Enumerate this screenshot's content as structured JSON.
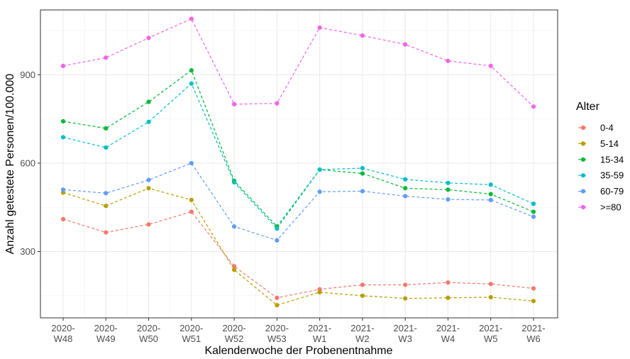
{
  "chart_data": {
    "type": "line",
    "xlabel": "Kalenderwoche der Probenentnahme",
    "ylabel": "Anzahl getestete Personen/100.000",
    "categories": [
      [
        "2020-",
        "W48"
      ],
      [
        "2020-",
        "W49"
      ],
      [
        "2020-",
        "W50"
      ],
      [
        "2020-",
        "W51"
      ],
      [
        "2020-",
        "W52"
      ],
      [
        "2020-",
        "W53"
      ],
      [
        "2021-",
        "W1"
      ],
      [
        "2021-",
        "W2"
      ],
      [
        "2021-",
        "W3"
      ],
      [
        "2021-",
        "W4"
      ],
      [
        "2021-",
        "W5"
      ],
      [
        "2021-",
        "W6"
      ]
    ],
    "ylim": [
      75,
      1120
    ],
    "yticks": [
      300,
      600,
      900
    ],
    "grid": true,
    "legend_title": "Alter",
    "legend_position": "right",
    "series": [
      {
        "name": "0-4",
        "color": "#F8766D",
        "values": [
          410,
          365,
          392,
          435,
          250,
          143,
          172,
          187,
          187,
          195,
          190,
          175
        ]
      },
      {
        "name": "5-14",
        "color": "#B79F00",
        "values": [
          500,
          455,
          515,
          475,
          238,
          118,
          162,
          150,
          141,
          143,
          145,
          132
        ]
      },
      {
        "name": "15-34",
        "color": "#00BA38",
        "values": [
          742,
          718,
          808,
          915,
          540,
          385,
          578,
          565,
          515,
          510,
          495,
          435
        ]
      },
      {
        "name": "35-59",
        "color": "#00BFC4",
        "values": [
          688,
          653,
          740,
          870,
          535,
          378,
          578,
          583,
          545,
          533,
          527,
          462
        ]
      },
      {
        "name": "60-79",
        "color": "#619CFF",
        "values": [
          510,
          498,
          543,
          600,
          385,
          338,
          503,
          505,
          488,
          477,
          475,
          418
        ]
      },
      {
        "name": ">=80",
        "color": "#F564E3",
        "values": [
          930,
          958,
          1025,
          1090,
          800,
          803,
          1060,
          1033,
          1003,
          947,
          930,
          792
        ]
      }
    ]
  }
}
